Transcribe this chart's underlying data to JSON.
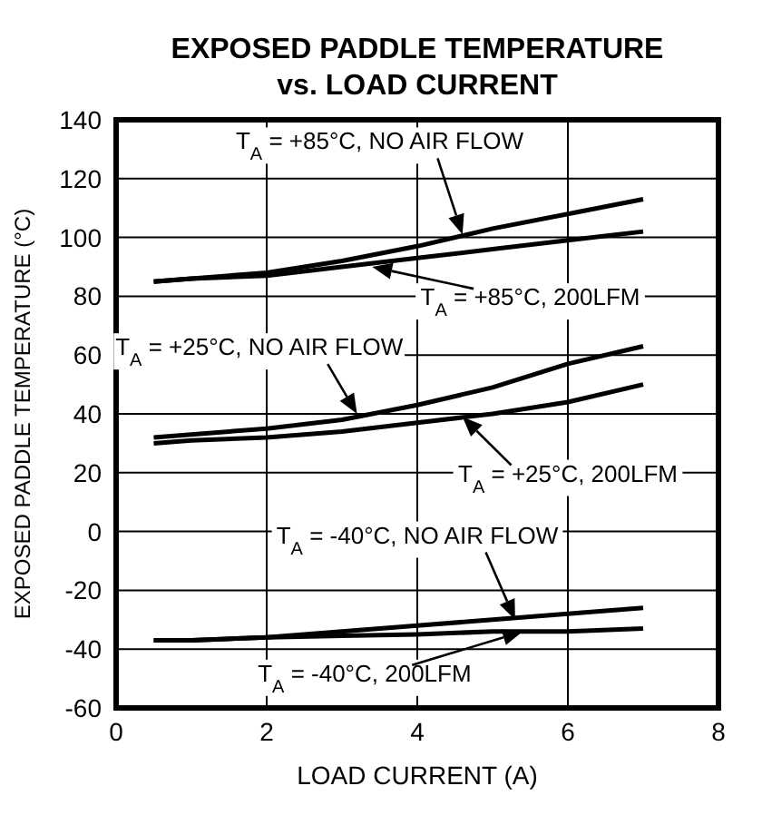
{
  "chart_data": {
    "type": "line",
    "title": "EXPOSED PADDLE TEMPERATURE\nvs. LOAD CURRENT",
    "xlabel": "LOAD CURRENT (A)",
    "ylabel": "EXPOSED PADDLE TEMPERATURE (°C)",
    "xlim": [
      0,
      8
    ],
    "xticks": [
      0,
      2,
      4,
      6,
      8
    ],
    "ylim": [
      -60,
      140
    ],
    "yticks": [
      -60,
      -40,
      -20,
      0,
      20,
      40,
      60,
      80,
      100,
      120,
      140
    ],
    "grid": true,
    "marker": "none",
    "line_style": "solid",
    "series": [
      {
        "color": "#000000",
        "x": [
          0.5,
          1,
          2,
          3,
          4,
          5,
          6,
          7
        ],
        "values": [
          85,
          86,
          88,
          92,
          97,
          103,
          108,
          113
        ]
      },
      {
        "color": "#000000",
        "x": [
          0.5,
          1,
          2,
          3,
          4,
          5,
          6,
          7
        ],
        "values": [
          85,
          86,
          87,
          90,
          93,
          96,
          99,
          102
        ]
      },
      {
        "color": "#000000",
        "x": [
          0.5,
          1,
          2,
          3,
          4,
          5,
          6,
          7
        ],
        "values": [
          32,
          33,
          35,
          38,
          43,
          49,
          57,
          63
        ]
      },
      {
        "color": "#000000",
        "x": [
          0.5,
          1,
          2,
          3,
          4,
          5,
          6,
          7
        ],
        "values": [
          30,
          31,
          32,
          34,
          37,
          40,
          44,
          50
        ]
      },
      {
        "color": "#000000",
        "x": [
          0.5,
          1,
          2,
          3,
          4,
          5,
          6,
          7
        ],
        "values": [
          -37,
          -37,
          -36,
          -34,
          -32,
          -30,
          -28,
          -26
        ]
      },
      {
        "color": "#000000",
        "x": [
          0.5,
          1,
          2,
          3,
          4,
          5,
          6,
          7
        ],
        "values": [
          -37,
          -37,
          -36,
          -35.5,
          -35,
          -34,
          -34,
          -33
        ]
      }
    ],
    "annotations": [
      {
        "text": "T$_{A}$ = +85°C, NO AIR FLOW",
        "x": 4.6,
        "y": 101
      },
      {
        "text": "T$_{A}$ = +85°C, 200LFM",
        "x": 3.4,
        "y": 90
      },
      {
        "text": "T$_{A}$ = +25°C, NO AIR FLOW",
        "x": 3.2,
        "y": 40
      },
      {
        "text": "T$_{A}$ = +25°C, 200LFM",
        "x": 4.6,
        "y": 39
      },
      {
        "text": "T$_{A}$ = -40°C, NO AIR FLOW",
        "x": 5.3,
        "y": -30
      },
      {
        "text": "T$_{A}$ = -40°C, 200LFM",
        "x": 5.4,
        "y": -34
      }
    ]
  }
}
